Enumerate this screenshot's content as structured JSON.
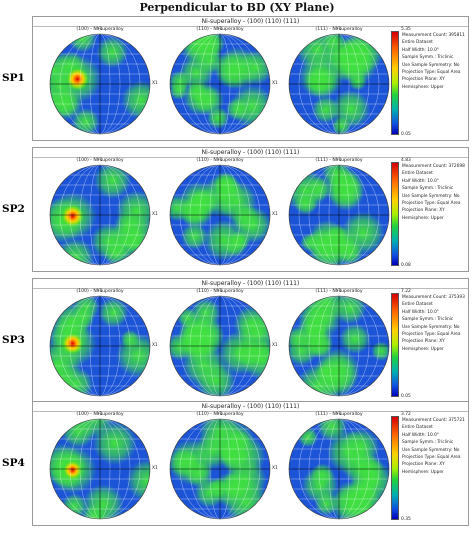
{
  "figure": {
    "title": "Perpendicular to BD (XY Plane)",
    "panel_header": "Ni-superalloy - (100)   (110)   (111)",
    "pole_titles": [
      "(100) - Ni-superalloy",
      "(110) - Ni-superalloy",
      "(111) - Ni-superalloy"
    ],
    "axis_y": "Y1",
    "axis_x": "X1",
    "info_common": [
      "Entire Dataset",
      "Half Width: 10.0°",
      "Sample Symm.: Triclinic",
      "Use Sample Symmetry: No",
      "Projection Type: Equal Area",
      "Projection Plane: XY",
      "Hemisphere: Upper"
    ]
  },
  "samples": [
    {
      "label": "SP1",
      "count_text": "Measurement Count: 395811",
      "max": "5.35",
      "min": "0.05",
      "hot": [
        0.45,
        0.1,
        1.0
      ]
    },
    {
      "label": "SP2",
      "count_text": "Measurement Count: 372698",
      "max": "4.83",
      "min": "0.08",
      "hot": [
        0.55,
        -0.02,
        1.0
      ]
    },
    {
      "label": "SP3",
      "count_text": "Measurement Count: 375393",
      "max": "7.22",
      "min": "0.05",
      "hot": [
        0.55,
        0.05,
        0.95
      ]
    },
    {
      "label": "SP4",
      "count_text": "Measurement Count: 375721",
      "max": "3.72",
      "min": "0.35",
      "hot": [
        0.55,
        -0.02,
        0.85
      ]
    }
  ],
  "colors": {
    "high": "#e00000",
    "mid": "#ffd000",
    "green": "#20d040",
    "base": "#1c54d8",
    "low": "#0000b8",
    "grid": "#ffffff"
  }
}
